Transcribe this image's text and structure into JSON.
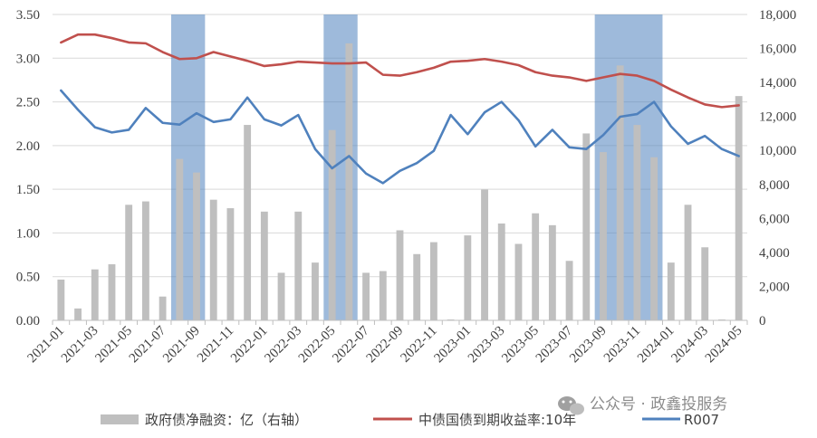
{
  "chart_data": {
    "type": "bar+line",
    "categories": [
      "2021-01",
      "2021-02",
      "2021-03",
      "2021-04",
      "2021-05",
      "2021-06",
      "2021-07",
      "2021-08",
      "2021-09",
      "2021-10",
      "2021-11",
      "2021-12",
      "2022-01",
      "2022-02",
      "2022-03",
      "2022-04",
      "2022-05",
      "2022-06",
      "2022-07",
      "2022-08",
      "2022-09",
      "2022-10",
      "2022-11",
      "2022-12",
      "2023-01",
      "2023-02",
      "2023-03",
      "2023-04",
      "2023-05",
      "2023-06",
      "2023-07",
      "2023-08",
      "2023-09",
      "2023-10",
      "2023-11",
      "2023-12",
      "2024-01",
      "2024-02",
      "2024-03",
      "2024-04",
      "2024-05"
    ],
    "x_tick_labels": [
      "2021-01",
      "2021-03",
      "2021-05",
      "2021-07",
      "2021-09",
      "2021-11",
      "2022-01",
      "2022-03",
      "2022-05",
      "2022-07",
      "2022-09",
      "2022-11",
      "2023-01",
      "2023-03",
      "2023-05",
      "2023-07",
      "2023-09",
      "2023-11",
      "2024-01",
      "2024-03",
      "2024-05"
    ],
    "y_left": {
      "min": 0,
      "max": 3.5,
      "ticks": [
        "0.00",
        "0.50",
        "1.00",
        "1.50",
        "2.00",
        "2.50",
        "3.00",
        "3.50"
      ]
    },
    "y_right": {
      "min": 0,
      "max": 18000,
      "ticks": [
        "0",
        "2,000",
        "4,000",
        "6,000",
        "8,000",
        "10,000",
        "12,000",
        "14,000",
        "16,000",
        "18,000"
      ]
    },
    "shaded_periods": [
      [
        "2021-08",
        "2021-09"
      ],
      [
        "2022-05",
        "2022-06"
      ],
      [
        "2023-09",
        "2023-12"
      ]
    ],
    "series": [
      {
        "name": "政府债净融资：亿（右轴）",
        "type": "bar",
        "axis": "right",
        "color": "#bfbfbf",
        "values": [
          2400,
          700,
          3000,
          3300,
          6800,
          7000,
          1400,
          9500,
          8700,
          7100,
          6600,
          11500,
          6400,
          2800,
          6400,
          3400,
          11200,
          16300,
          2800,
          2900,
          5300,
          3900,
          4600,
          50,
          5000,
          7700,
          5700,
          4500,
          6300,
          5600,
          3500,
          11000,
          9900,
          15000,
          11500,
          9600,
          3400,
          6800,
          4300,
          50,
          13200
        ]
      },
      {
        "name": "中债国债到期收益率:10年",
        "type": "line",
        "axis": "left",
        "color": "#c0504d",
        "values": [
          3.18,
          3.27,
          3.27,
          3.23,
          3.18,
          3.17,
          3.07,
          2.99,
          3.0,
          3.07,
          3.02,
          2.97,
          2.91,
          2.93,
          2.96,
          2.95,
          2.94,
          2.94,
          2.95,
          2.81,
          2.8,
          2.84,
          2.89,
          2.96,
          2.97,
          2.99,
          2.96,
          2.92,
          2.84,
          2.8,
          2.78,
          2.74,
          2.78,
          2.82,
          2.8,
          2.74,
          2.64,
          2.55,
          2.47,
          2.44,
          2.46
        ]
      },
      {
        "name": "R007",
        "type": "line",
        "axis": "left",
        "color": "#4f81bd",
        "values": [
          2.63,
          2.41,
          2.21,
          2.15,
          2.18,
          2.43,
          2.26,
          2.24,
          2.37,
          2.27,
          2.3,
          2.55,
          2.3,
          2.23,
          2.35,
          1.96,
          1.74,
          1.88,
          1.68,
          1.57,
          1.71,
          1.8,
          1.94,
          2.35,
          2.13,
          2.38,
          2.5,
          2.29,
          1.99,
          2.18,
          1.98,
          1.96,
          2.12,
          2.33,
          2.36,
          2.5,
          2.22,
          2.02,
          2.11,
          1.96,
          1.88
        ]
      }
    ],
    "legend": {
      "position": "bottom",
      "items": [
        "政府债净融资：亿（右轴）",
        "中债国债到期收益率:10年",
        "R007"
      ]
    }
  },
  "watermark": {
    "text": "公众号 · 政鑫投服务",
    "icon": "wechat-icon"
  }
}
